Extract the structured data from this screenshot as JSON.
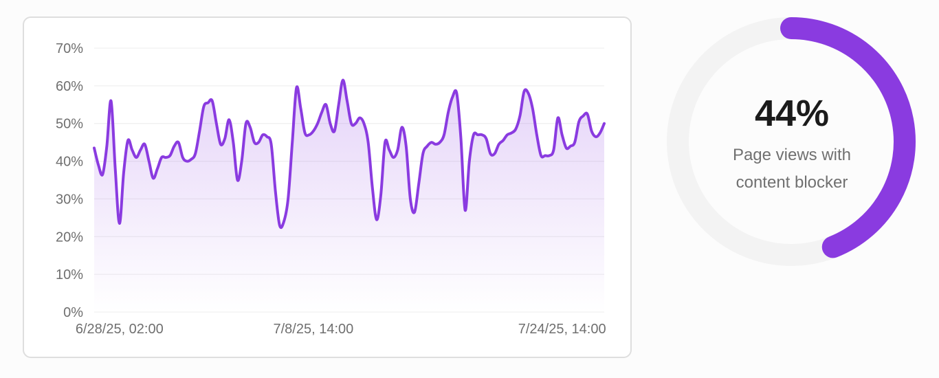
{
  "colors": {
    "accent": "#8a3be0",
    "track": "#f3f3f3",
    "grid": "#ececec"
  },
  "gauge": {
    "value_text": "44%",
    "fraction": 0.44,
    "label": "Page views with content blocker"
  },
  "chart_data": {
    "type": "area",
    "title": "",
    "xlabel": "",
    "ylabel": "",
    "ylim": [
      0,
      70
    ],
    "y_ticks": [
      0,
      10,
      20,
      30,
      40,
      50,
      60,
      70
    ],
    "y_tick_labels": [
      "0%",
      "10%",
      "20%",
      "30%",
      "40%",
      "50%",
      "60%",
      "70%"
    ],
    "x_tick_labels": [
      {
        "index": 6,
        "label": "6/28/25, 02:00"
      },
      {
        "index": 52,
        "label": "7/8/25, 14:00"
      },
      {
        "index": 111,
        "label": "7/24/25, 14:00"
      }
    ],
    "grid": true,
    "series": [
      {
        "name": "",
        "values": [
          43.5,
          39,
          36.5,
          44,
          56,
          38,
          23.5,
          37,
          45.5,
          43,
          41,
          43,
          44.5,
          40,
          35.5,
          38,
          41,
          41,
          41.5,
          44,
          45,
          41,
          40,
          40.5,
          42,
          48,
          54.5,
          55.5,
          56,
          50,
          44.5,
          46,
          51,
          45,
          35,
          40,
          50,
          49,
          45,
          45,
          47,
          46.5,
          44.5,
          32,
          23,
          24,
          30,
          45,
          59.5,
          54,
          47.5,
          47,
          48,
          50,
          53,
          55,
          50,
          48,
          55,
          61.5,
          56,
          50,
          50,
          51.5,
          50,
          45,
          33,
          24.5,
          31,
          45,
          43,
          41,
          43,
          49,
          44,
          30,
          26.5,
          34,
          42,
          44,
          45,
          44.5,
          45,
          47,
          53,
          57,
          58,
          46,
          27,
          40,
          47,
          47,
          47,
          46,
          42,
          42,
          44.5,
          45.5,
          47,
          47.5,
          48.5,
          52,
          58.5,
          58,
          54,
          47,
          41.5,
          41.5,
          41.5,
          43,
          51.5,
          47,
          43.5,
          44,
          45,
          50.5,
          52,
          52.5,
          48,
          46.5,
          47.5,
          50
        ]
      }
    ]
  }
}
